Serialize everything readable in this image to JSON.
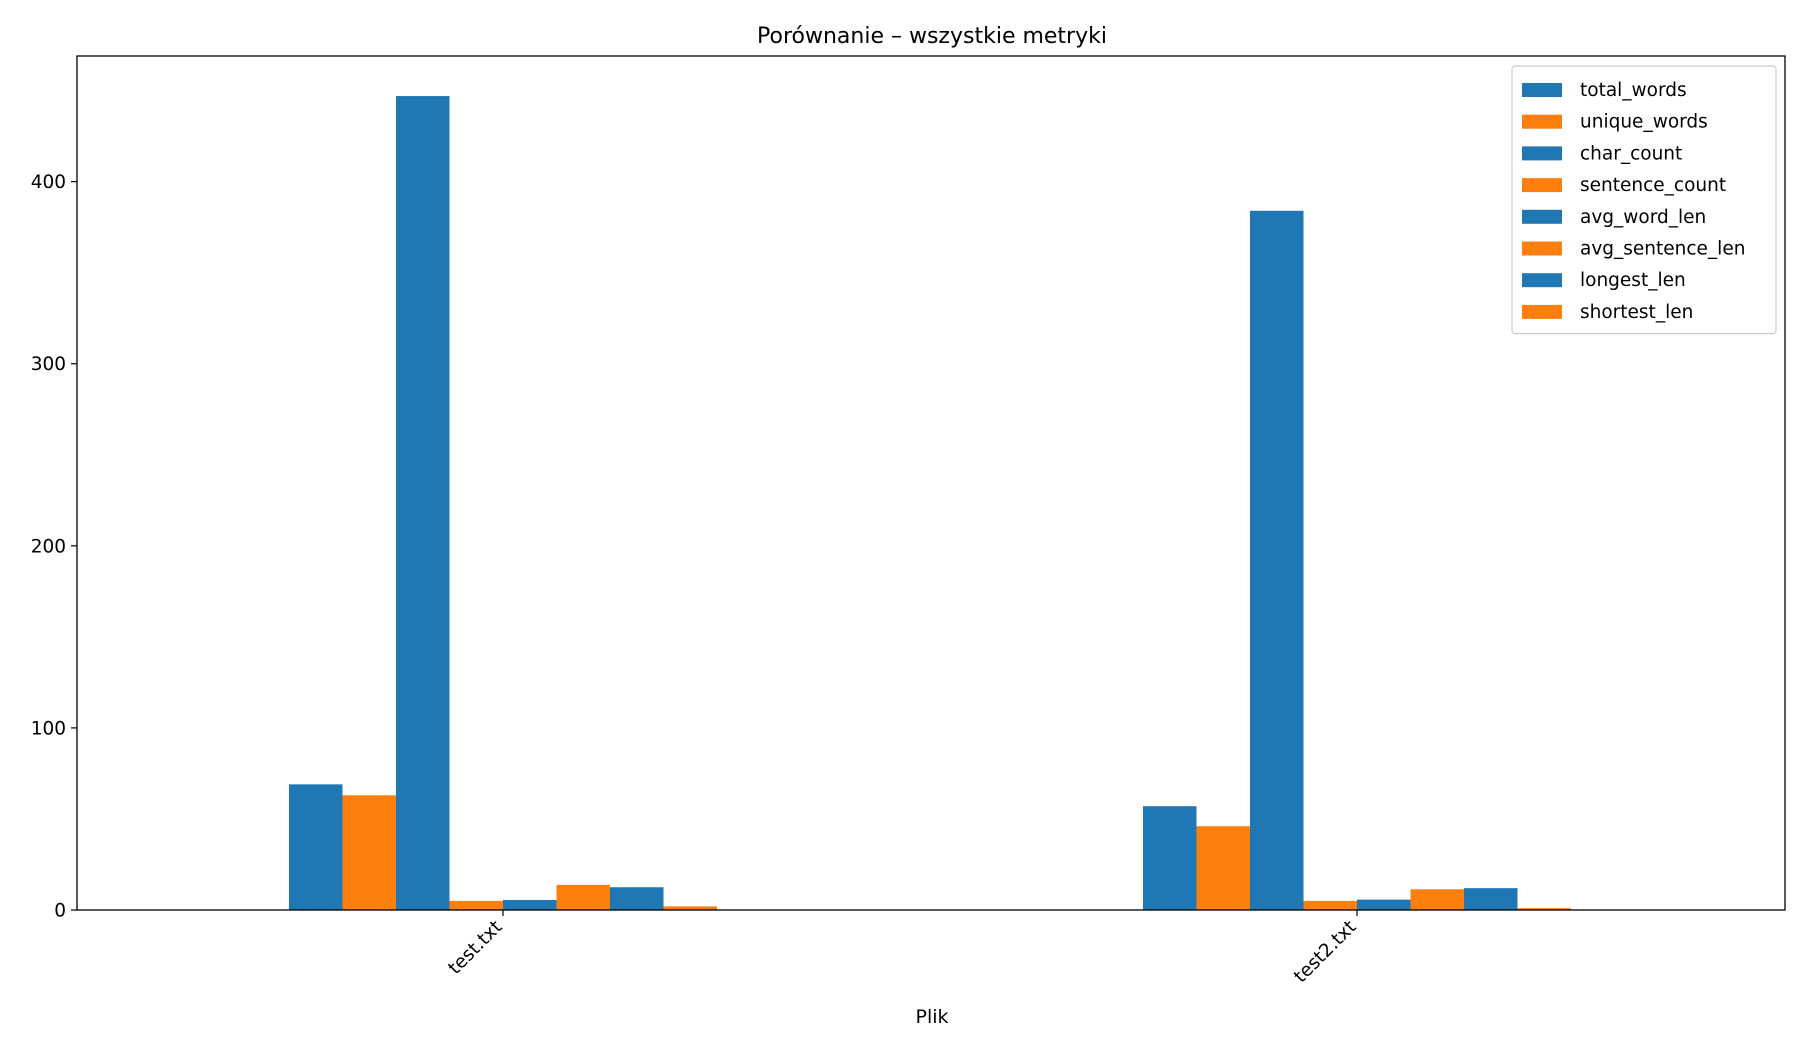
{
  "chart_data": {
    "type": "bar",
    "title": "Porównanie – wszystkie metryki",
    "xlabel": "Plik",
    "ylabel": "",
    "categories": [
      "test.txt",
      "test2.txt"
    ],
    "ylim": [
      0,
      469
    ],
    "yticks": [
      0,
      100,
      200,
      300,
      400
    ],
    "grid": false,
    "legend_position": "top-right",
    "series": [
      {
        "name": "total_words",
        "values": [
          69,
          57
        ],
        "color": "#1f77b4"
      },
      {
        "name": "unique_words",
        "values": [
          63,
          46
        ],
        "color": "#ff7f0e"
      },
      {
        "name": "char_count",
        "values": [
          447,
          384
        ],
        "color": "#1f77b4"
      },
      {
        "name": "sentence_count",
        "values": [
          5,
          5
        ],
        "color": "#ff7f0e"
      },
      {
        "name": "avg_word_len",
        "values": [
          5.5,
          5.7
        ],
        "color": "#1f77b4"
      },
      {
        "name": "avg_sentence_len",
        "values": [
          13.8,
          11.4
        ],
        "color": "#ff7f0e"
      },
      {
        "name": "longest_len",
        "values": [
          12.5,
          12
        ],
        "color": "#1f77b4"
      },
      {
        "name": "shortest_len",
        "values": [
          2,
          1
        ],
        "color": "#ff7f0e"
      }
    ]
  }
}
